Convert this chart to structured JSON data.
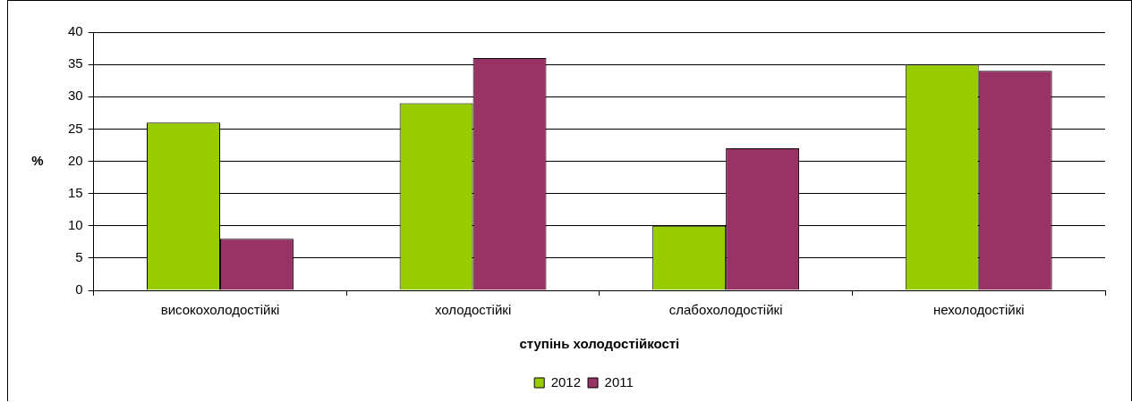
{
  "chart_data": {
    "type": "bar",
    "xlabel": "ступінь холодостійкості",
    "ylabel": "%",
    "categories": [
      "високохолодостійкі",
      "холодостійкі",
      "слабохолодостійкі",
      "нехолодостійкі"
    ],
    "series": [
      {
        "name": "2012",
        "color": "#99cc00",
        "values": [
          26,
          29,
          10,
          35
        ]
      },
      {
        "name": "2011",
        "color": "#993366",
        "values": [
          8,
          36,
          22,
          34
        ]
      }
    ],
    "ylim": [
      0,
      40
    ],
    "yticks": [
      0,
      5,
      10,
      15,
      20,
      25,
      30,
      35,
      40
    ],
    "grid": "y",
    "legend": "bottom"
  }
}
